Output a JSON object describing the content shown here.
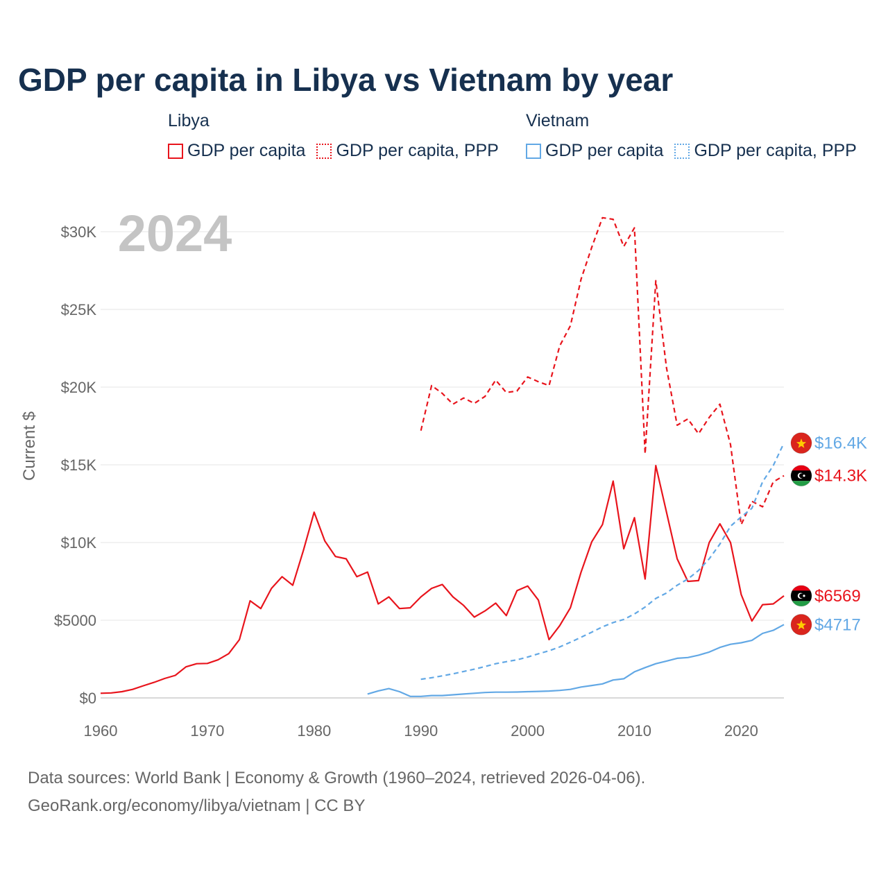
{
  "chart_data": {
    "type": "line",
    "title": "GDP per capita in Libya vs Vietnam by year",
    "year_label": "2024",
    "ylabel": "Current $",
    "xlabel": "",
    "xlim": [
      1960,
      2024
    ],
    "ylim": [
      0,
      30000
    ],
    "yticks": [
      {
        "value": 0,
        "label": "$0"
      },
      {
        "value": 5000,
        "label": "$5000"
      },
      {
        "value": 10000,
        "label": "$10K"
      },
      {
        "value": 15000,
        "label": "$15K"
      },
      {
        "value": 20000,
        "label": "$20K"
      },
      {
        "value": 25000,
        "label": "$25K"
      },
      {
        "value": 30000,
        "label": "$30K"
      }
    ],
    "xticks": [
      {
        "value": 1960,
        "label": "1960"
      },
      {
        "value": 1970,
        "label": "1970"
      },
      {
        "value": 1980,
        "label": "1980"
      },
      {
        "value": 1990,
        "label": "1990"
      },
      {
        "value": 2000,
        "label": "2000"
      },
      {
        "value": 2010,
        "label": "2010"
      },
      {
        "value": 2020,
        "label": "2020"
      }
    ],
    "grid": true,
    "legend": [
      {
        "group": "Libya",
        "items": [
          {
            "label": "GDP per capita",
            "color": "#e8141c",
            "style": "solid"
          },
          {
            "label": "GDP per capita, PPP",
            "color": "#e8141c",
            "style": "dotted"
          }
        ]
      },
      {
        "group": "Vietnam",
        "items": [
          {
            "label": "GDP per capita",
            "color": "#62a8e5",
            "style": "solid"
          },
          {
            "label": "GDP per capita, PPP",
            "color": "#62a8e5",
            "style": "dotted"
          }
        ]
      }
    ],
    "series": [
      {
        "name": "Libya GDP per capita",
        "country": "Libya",
        "color": "#e8141c",
        "dash": false,
        "flag": "libya",
        "end_label": "$6569",
        "start_year": 1960,
        "values": [
          300,
          320,
          400,
          550,
          780,
          1000,
          1250,
          1450,
          2000,
          2200,
          2220,
          2450,
          2850,
          3750,
          6250,
          5750,
          7050,
          7800,
          7250,
          9500,
          11950,
          10100,
          9100,
          8950,
          7800,
          8100,
          6050,
          6500,
          5750,
          5800,
          6500,
          7050,
          7300,
          6500,
          5950,
          5200,
          5600,
          6100,
          5300,
          6900,
          7200,
          6300,
          3750,
          4650,
          5800,
          8100,
          10050,
          11150,
          13950,
          9600,
          11600,
          7650,
          14950,
          11950,
          8950,
          7500,
          7550,
          10000,
          11200,
          10000,
          6650,
          4950,
          6000,
          6050,
          6569
        ]
      },
      {
        "name": "Libya GDP per capita, PPP",
        "country": "Libya",
        "color": "#e8141c",
        "dash": true,
        "flag": "libya",
        "end_label": "$14.3K",
        "start_year": 1990,
        "values": [
          17200,
          20100,
          19600,
          18900,
          19300,
          18950,
          19400,
          20450,
          19650,
          19750,
          20650,
          20350,
          20100,
          22650,
          23950,
          26950,
          29000,
          30900,
          30800,
          29050,
          30250,
          15700,
          26850,
          21250,
          17550,
          17950,
          17000,
          18050,
          18900,
          16300,
          11150,
          12650,
          12300,
          13900,
          14300
        ]
      },
      {
        "name": "Vietnam GDP per capita",
        "country": "Vietnam",
        "color": "#62a8e5",
        "dash": false,
        "flag": "vietnam",
        "end_label": "$4717",
        "start_year": 1985,
        "values": [
          250,
          450,
          600,
          400,
          100,
          100,
          150,
          150,
          200,
          250,
          300,
          350,
          370,
          370,
          380,
          400,
          420,
          440,
          480,
          550,
          700,
          800,
          900,
          1150,
          1230,
          1680,
          1950,
          2200,
          2370,
          2550,
          2600,
          2750,
          2950,
          3250,
          3450,
          3550,
          3700,
          4150,
          4350,
          4717
        ]
      },
      {
        "name": "Vietnam GDP per capita, PPP",
        "country": "Vietnam",
        "color": "#62a8e5",
        "dash": true,
        "flag": "vietnam",
        "end_label": "$16.4K",
        "start_year": 1990,
        "values": [
          1200,
          1300,
          1420,
          1550,
          1700,
          1850,
          2020,
          2200,
          2330,
          2450,
          2630,
          2840,
          3030,
          3280,
          3580,
          3900,
          4230,
          4570,
          4850,
          5050,
          5400,
          5850,
          6400,
          6750,
          7250,
          7650,
          8200,
          8950,
          9900,
          11050,
          11650,
          12200,
          13900,
          14950,
          16400
        ]
      }
    ]
  },
  "footer": {
    "line1": "Data sources: World Bank | Economy & Growth (1960–2024, retrieved 2026-04-06).",
    "line2": "GeoRank.org/economy/libya/vietnam | CC BY"
  }
}
